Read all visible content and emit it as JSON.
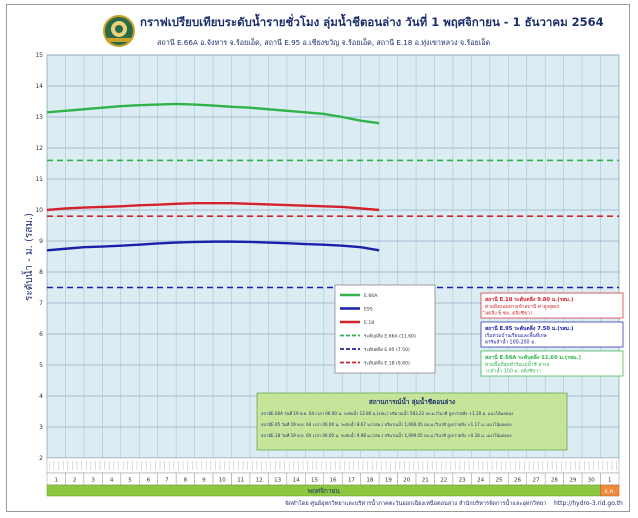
{
  "header": {
    "title": "กราฟเปรียบเทียบระดับน้ำรายชั่วโมง ลุ่มน้ำชีตอนล่าง วันที่ 1 พฤศจิกายน - 1 ธันวาคม 2564",
    "subtitle": "สถานี E.66A อ.จังหาร จ.ร้อยเอ็ด, สถานี E.95 อ.เชียงขวัญ จ.ร้อยเอ็ด, สถานี E.18 อ.ทุ่งเขาหลวง จ.ร้อยเอ็ด"
  },
  "footer": {
    "credit": "จัดทำโดย ศูนย์อุทกวิทยาและบริหารน้ำภาคตะวันออกเฉียงเหนือตอนล่าง สำนักบริหารจัดการน้ำและอุทกวิทยา",
    "url": "http://hydro-3.rid.go.th"
  },
  "x_axis": {
    "day_labels": [
      "1",
      "2",
      "3",
      "4",
      "5",
      "6",
      "7",
      "8",
      "9",
      "10",
      "11",
      "12",
      "13",
      "14",
      "15",
      "16",
      "17",
      "18",
      "19",
      "20",
      "21",
      "22",
      "23",
      "24",
      "25",
      "26",
      "27",
      "28",
      "29",
      "30",
      "1"
    ],
    "month_label": "พฤศจิกายน",
    "next_month_label": "ธ.ค."
  },
  "chart_data": {
    "type": "line",
    "title": "กราฟเปรียบเทียบระดับน้ำรายชั่วโมง ลุ่มน้ำชีตอนล่าง วันที่ 1 พฤศจิกายน - 1 ธันวาคม 2564",
    "ylabel": "ระดับน้ำ - ม. (รสม.)",
    "xlabel": "",
    "ylim": [
      2,
      15
    ],
    "yticks": [
      2,
      3,
      4,
      5,
      6,
      7,
      8,
      9,
      10,
      11,
      12,
      13,
      14,
      15
    ],
    "xlim": [
      1,
      32
    ],
    "x": [
      1,
      2,
      3,
      4,
      5,
      6,
      7,
      8,
      9,
      10,
      11,
      12,
      13,
      14,
      15,
      16,
      17,
      18,
      19
    ],
    "series": [
      {
        "name": "E.66A",
        "color": "#2fb34a",
        "values": [
          13.15,
          13.2,
          13.25,
          13.3,
          13.35,
          13.38,
          13.4,
          13.42,
          13.4,
          13.37,
          13.33,
          13.3,
          13.25,
          13.2,
          13.15,
          13.1,
          13.0,
          12.88,
          12.8
        ]
      },
      {
        "name": "E95",
        "color": "#1a20a8",
        "values": [
          8.7,
          8.75,
          8.8,
          8.82,
          8.85,
          8.88,
          8.92,
          8.95,
          8.97,
          8.98,
          8.98,
          8.97,
          8.95,
          8.93,
          8.9,
          8.88,
          8.85,
          8.8,
          8.7
        ]
      },
      {
        "name": "E.18",
        "color": "#d2232a",
        "values": [
          10.0,
          10.05,
          10.08,
          10.1,
          10.12,
          10.15,
          10.17,
          10.2,
          10.22,
          10.22,
          10.22,
          10.2,
          10.18,
          10.16,
          10.14,
          10.12,
          10.1,
          10.05,
          10.0
        ]
      }
    ],
    "reference_lines": [
      {
        "name": "ระดับตลิ่ง E.66A (11.60)",
        "value": 11.6,
        "color": "#2fb34a"
      },
      {
        "name": "ระดับตลิ่ง E.95 (7.50)",
        "value": 7.5,
        "color": "#1a20a8"
      },
      {
        "name": "ระดับตลิ่ง E.18 (9.80)",
        "value": 9.8,
        "color": "#d2232a"
      }
    ],
    "legend": {
      "position": "center-right",
      "entries": [
        "E.66A",
        "E95",
        "E.18",
        "ระดับตลิ่ง E.66A (11.60)",
        "ระดับตลิ่ง E.95 (7.50)",
        "ระดับตลิ่ง E.18 (9.80)"
      ]
    },
    "annotations": [
      {
        "title": "สถานี E.18 ระดับตลิ่ง 9.80 ม.(รสม.)",
        "body": "ท่วมฝั่งถนนทางเข้าสถานี ค่าสูงสุดเกินตลิ่ง 6 ซม. ตลิ่งชีขวา",
        "color": "#d2232a"
      },
      {
        "title": "สถานี E.95 ระดับตลิ่ง 7.50 ม.(รสม.)",
        "body": "เริ่มท่วมบ้านเรือนและพื้นที่เกษตรริมลำน้ำ 100-200 ม.",
        "color": "#1a20a8"
      },
      {
        "title": "สถานี E.66A ระดับตลิ่ง 11.60 ม.(รสม.)",
        "body": "ท่วมพื้นที่ลุ่มต่ำริมแม่น้ำชี ห่างจากลำน้ำ 100 ม. ตลิ่งชีขวา",
        "color": "#2fb34a"
      }
    ],
    "status_box": {
      "title": "สถานการณ์น้ำ ลุ่มน้ำชีตอนล่าง",
      "lines": [
        "สถานีE.66A วันที่ 19 พ.ย. 64 เวลา 06.00 น. ระดับน้ำ 12.80 ม.(รสม.) ปริมาณน้ำ 583.22 ลบ.ม./วินาที สูงกว่าตลิ่ง +1.20 ม. แนวโน้มลดลง",
        "สถานีE.95 วันที่ 19 พ.ย. 64 เวลา 06.00 น. ระดับน้ำ 8.67 ม.(รสม.) ปริมาณน้ำ 1,066.45 ลบ.ม./วินาที สูงกว่าตลิ่ง +1.17 ม. แนวโน้มลดลง",
        "สถานีE.18 วันที่ 19 พ.ย. 64 เวลา 06.00 น. ระดับน้ำ 9.98 ม.(รสม.) ปริมาณน้ำ 1,099.05 ลบ.ม./วินาที สูงกว่าตลิ่ง +0.18 ม. แนวโน้มลดลง"
      ]
    },
    "grid": true
  }
}
